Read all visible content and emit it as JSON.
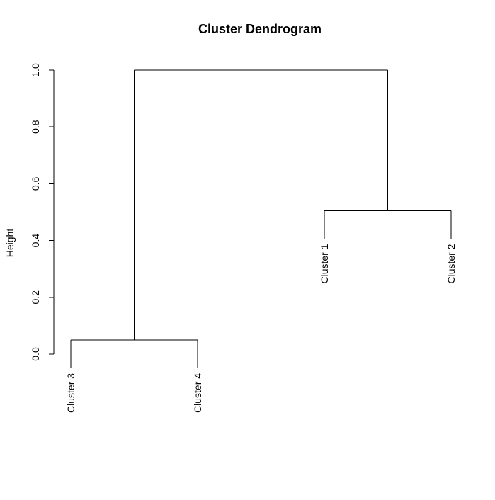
{
  "chart_data": {
    "type": "dendrogram",
    "title": "Cluster Dendrogram",
    "ylabel": "Height",
    "xlabel": "",
    "ylim": [
      0,
      1
    ],
    "yticks": [
      0.0,
      0.2,
      0.4,
      0.6,
      0.8,
      1.0
    ],
    "ytick_labels": [
      "0.0",
      "0.2",
      "0.4",
      "0.6",
      "0.8",
      "1.0"
    ],
    "leaves": [
      "Cluster 3",
      "Cluster 4",
      "Cluster 1",
      "Cluster 2"
    ],
    "merges": [
      {
        "left": "Cluster 3",
        "right": "Cluster 4",
        "height": 0.05
      },
      {
        "left": "Cluster 1",
        "right": "Cluster 2",
        "height": 0.505
      },
      {
        "left": "Cluster 3 + Cluster 4",
        "right": "Cluster 1 + Cluster 2",
        "height": 1.0
      }
    ],
    "leaf_heights": [
      0.05,
      0.05,
      0.505,
      0.505
    ]
  },
  "colors": {
    "line": "#000000",
    "text": "#000000",
    "background": "#ffffff"
  }
}
